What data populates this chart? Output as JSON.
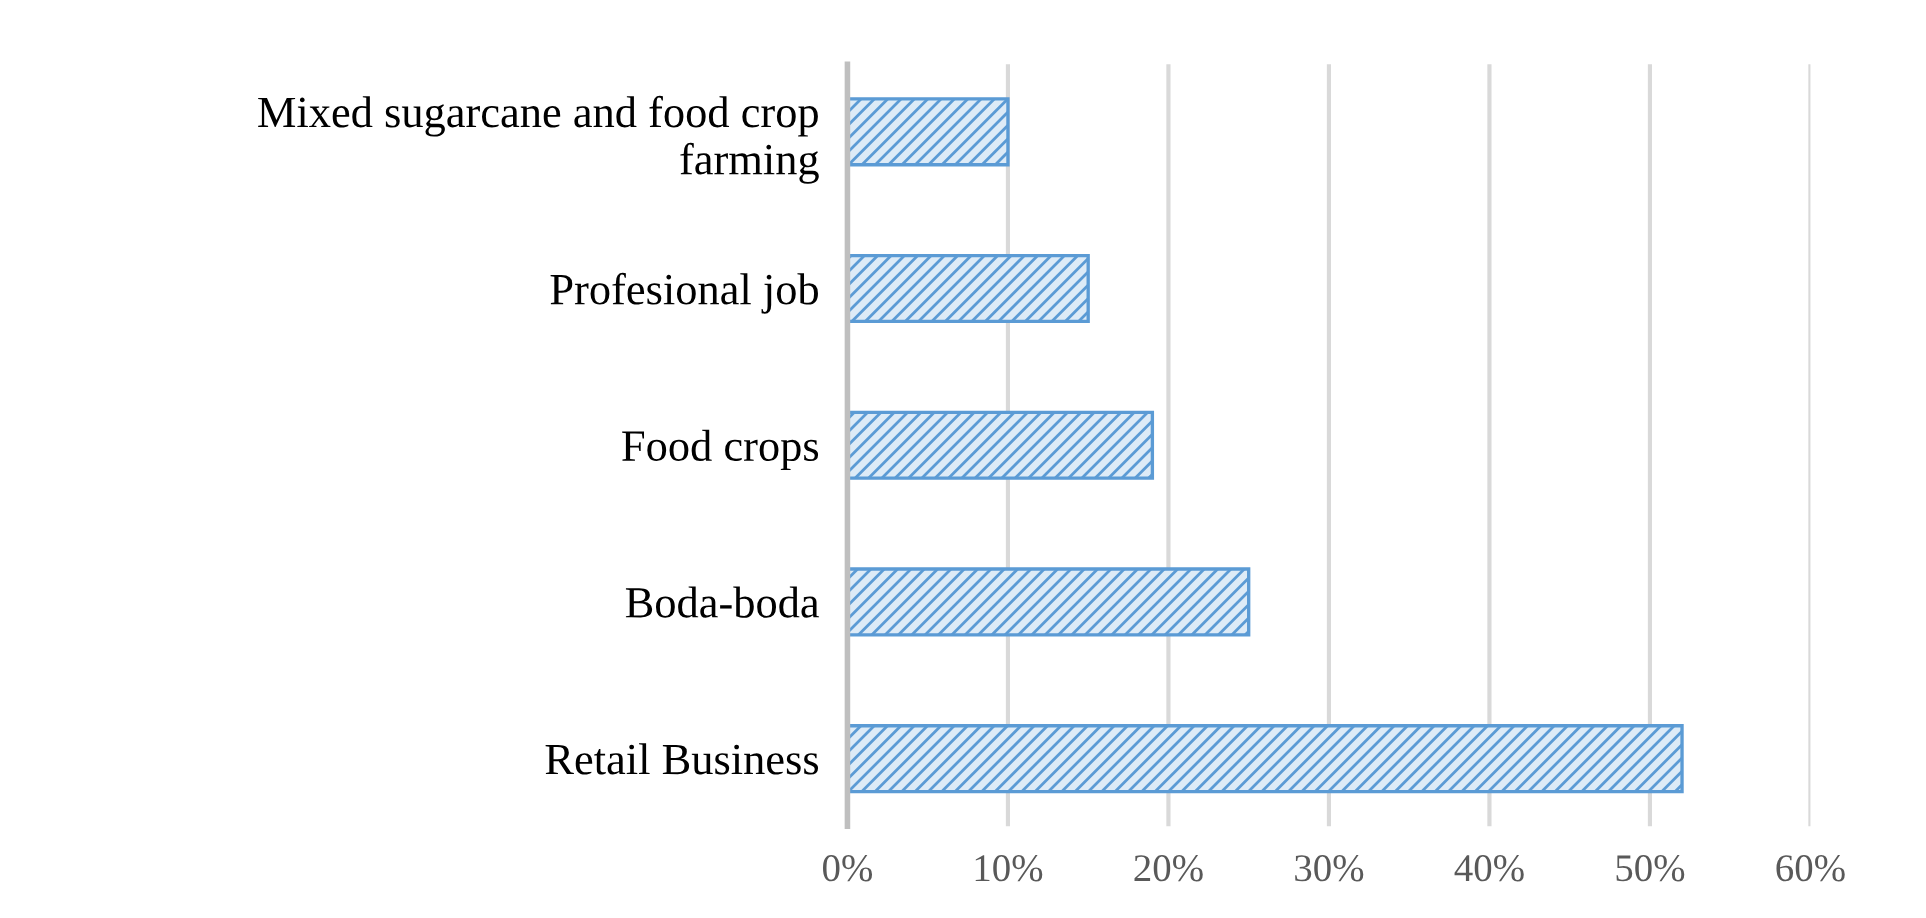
{
  "chart_data": {
    "type": "bar",
    "orientation": "horizontal",
    "categories": [
      "Mixed sugarcane and food crop\nfarming",
      "Profesional job",
      "Food crops",
      "Boda-boda",
      "Retail Business"
    ],
    "values": [
      10,
      15,
      19,
      25,
      52
    ],
    "color": "#5b9bd5",
    "xlim": [
      0,
      60
    ],
    "xticks": [
      {
        "value": 0,
        "label": "0%"
      },
      {
        "value": 10,
        "label": "10%"
      },
      {
        "value": 20,
        "label": "20%"
      },
      {
        "value": 30,
        "label": "30%"
      },
      {
        "value": 40,
        "label": "40%"
      },
      {
        "value": 50,
        "label": "50%"
      },
      {
        "value": 60,
        "label": "60%"
      }
    ],
    "grid": "x"
  }
}
